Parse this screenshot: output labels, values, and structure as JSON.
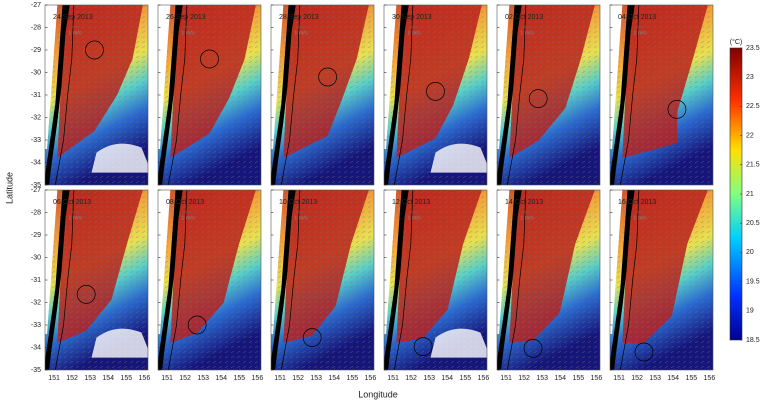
{
  "figure": {
    "panels": [
      {
        "date": "24 Sep 2013"
      },
      {
        "date": "26 Sep 2013"
      },
      {
        "date": "28 Sep 2013"
      },
      {
        "date": "30 Sep 2013"
      },
      {
        "date": "02 Oct 2013"
      },
      {
        "date": "04 Oct 2013"
      },
      {
        "date": "06 Oct 2013"
      },
      {
        "date": "08 Oct 2013"
      },
      {
        "date": "10 Oct 2013"
      },
      {
        "date": "12 Oct 2013"
      },
      {
        "date": "14 Oct 2013"
      },
      {
        "date": "16 Oct 2013"
      }
    ],
    "scale_label": "1 m/s",
    "xlabel": "Longitude",
    "ylabel": "Latitude",
    "xlim": [
      150.5,
      156.2
    ],
    "xticks": [
      151,
      152,
      153,
      154,
      155,
      156
    ],
    "ylim": [
      -35,
      -27
    ],
    "yticks": [
      -27,
      -28,
      -29,
      -30,
      -31,
      -32,
      -33,
      -34,
      -35
    ],
    "colorbar": {
      "label": "(°C)",
      "lim": [
        18.5,
        23.5
      ],
      "ticks": [
        18.5,
        19,
        19.5,
        20,
        20.5,
        21,
        21.5,
        22,
        22.5,
        23,
        23.5
      ]
    }
  }
}
